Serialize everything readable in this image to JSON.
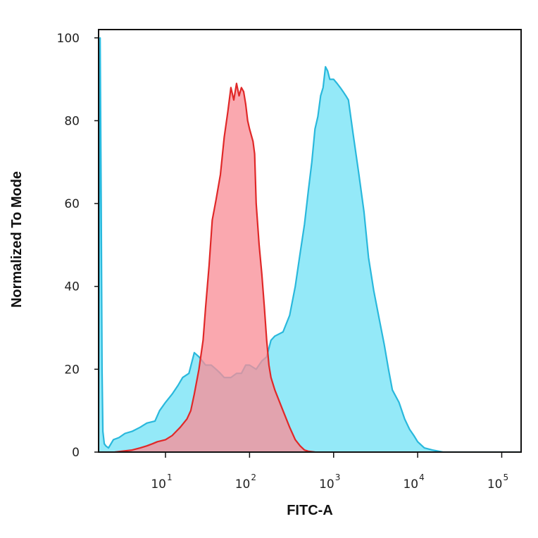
{
  "chart_data": {
    "type": "area",
    "xlabel": "FITC-A",
    "ylabel": "Normalized To Mode",
    "xscale": "log",
    "xlim": [
      1.6,
      170000
    ],
    "ylim": [
      0,
      102
    ],
    "grid": false,
    "legend": "none",
    "y_ticks": [
      "0",
      "20",
      "40",
      "60",
      "80",
      "100"
    ],
    "x_ticks": [
      {
        "base": "10",
        "exp": "1",
        "value": 10
      },
      {
        "base": "10",
        "exp": "2",
        "value": 100
      },
      {
        "base": "10",
        "exp": "3",
        "value": 1000
      },
      {
        "base": "10",
        "exp": "4",
        "value": 10000
      },
      {
        "base": "10",
        "exp": "5",
        "value": 100000
      }
    ],
    "series": [
      {
        "color_fill": "#8ee8f8",
        "color_line": "#29b8dc",
        "x": [
          1.6,
          1.67,
          1.72,
          1.76,
          1.8,
          1.87,
          1.95,
          2.1,
          2.4,
          2.8,
          3.3,
          4,
          5,
          6,
          7.5,
          8.5,
          10,
          12,
          14,
          16,
          19,
          22,
          25,
          30,
          35,
          40,
          45,
          50,
          60,
          70,
          80,
          90,
          100,
          120,
          140,
          160,
          180,
          200,
          250,
          300,
          350,
          400,
          450,
          500,
          550,
          600,
          650,
          700,
          750,
          800,
          850,
          900,
          1000,
          1100,
          1200,
          1300,
          1400,
          1500,
          1700,
          2000,
          2300,
          2600,
          3000,
          3500,
          4000,
          4500,
          5000,
          6000,
          7000,
          8000,
          9000,
          10000,
          12000,
          15000,
          20000,
          30000,
          50000,
          100000,
          170000
        ],
        "y": [
          0,
          100,
          60,
          20,
          5,
          2,
          1.5,
          1,
          3,
          3.5,
          4.5,
          5,
          6,
          7,
          7.5,
          10,
          12,
          14,
          16,
          18,
          19,
          24,
          23,
          21,
          21,
          20,
          19,
          18,
          18,
          19,
          19,
          21,
          21,
          20,
          22,
          23,
          27,
          28,
          29,
          33,
          40,
          48,
          55,
          63,
          70,
          78,
          81,
          86,
          88,
          93,
          92,
          90,
          90,
          89,
          88,
          87,
          86,
          85,
          77,
          67,
          58,
          47,
          39,
          32,
          26,
          20,
          15,
          12,
          8,
          5.5,
          4,
          2.5,
          1,
          0.5,
          0,
          0,
          0,
          0,
          0
        ]
      },
      {
        "color_fill": "#f98f98",
        "color_line": "#e02828",
        "x": [
          2.5,
          3,
          4,
          5,
          6,
          7,
          8,
          10,
          12,
          15,
          18,
          20,
          22,
          25,
          28,
          30,
          33,
          36,
          40,
          45,
          50,
          55,
          60,
          65,
          70,
          75,
          80,
          85,
          90,
          95,
          100,
          110,
          115,
          120,
          130,
          140,
          150,
          160,
          170,
          180,
          200,
          250,
          300,
          350,
          400,
          450,
          500,
          600
        ],
        "y": [
          0,
          0.2,
          0.5,
          1,
          1.5,
          2,
          2.5,
          3,
          4,
          6,
          8,
          10,
          14,
          20,
          27,
          35,
          45,
          56,
          61,
          67,
          76,
          82,
          88,
          85,
          89,
          86,
          88,
          87,
          84,
          80,
          78,
          75,
          72,
          60,
          50,
          43,
          35,
          27,
          21,
          18,
          15,
          10,
          6,
          3,
          1.5,
          0.5,
          0.2,
          0
        ]
      }
    ]
  }
}
